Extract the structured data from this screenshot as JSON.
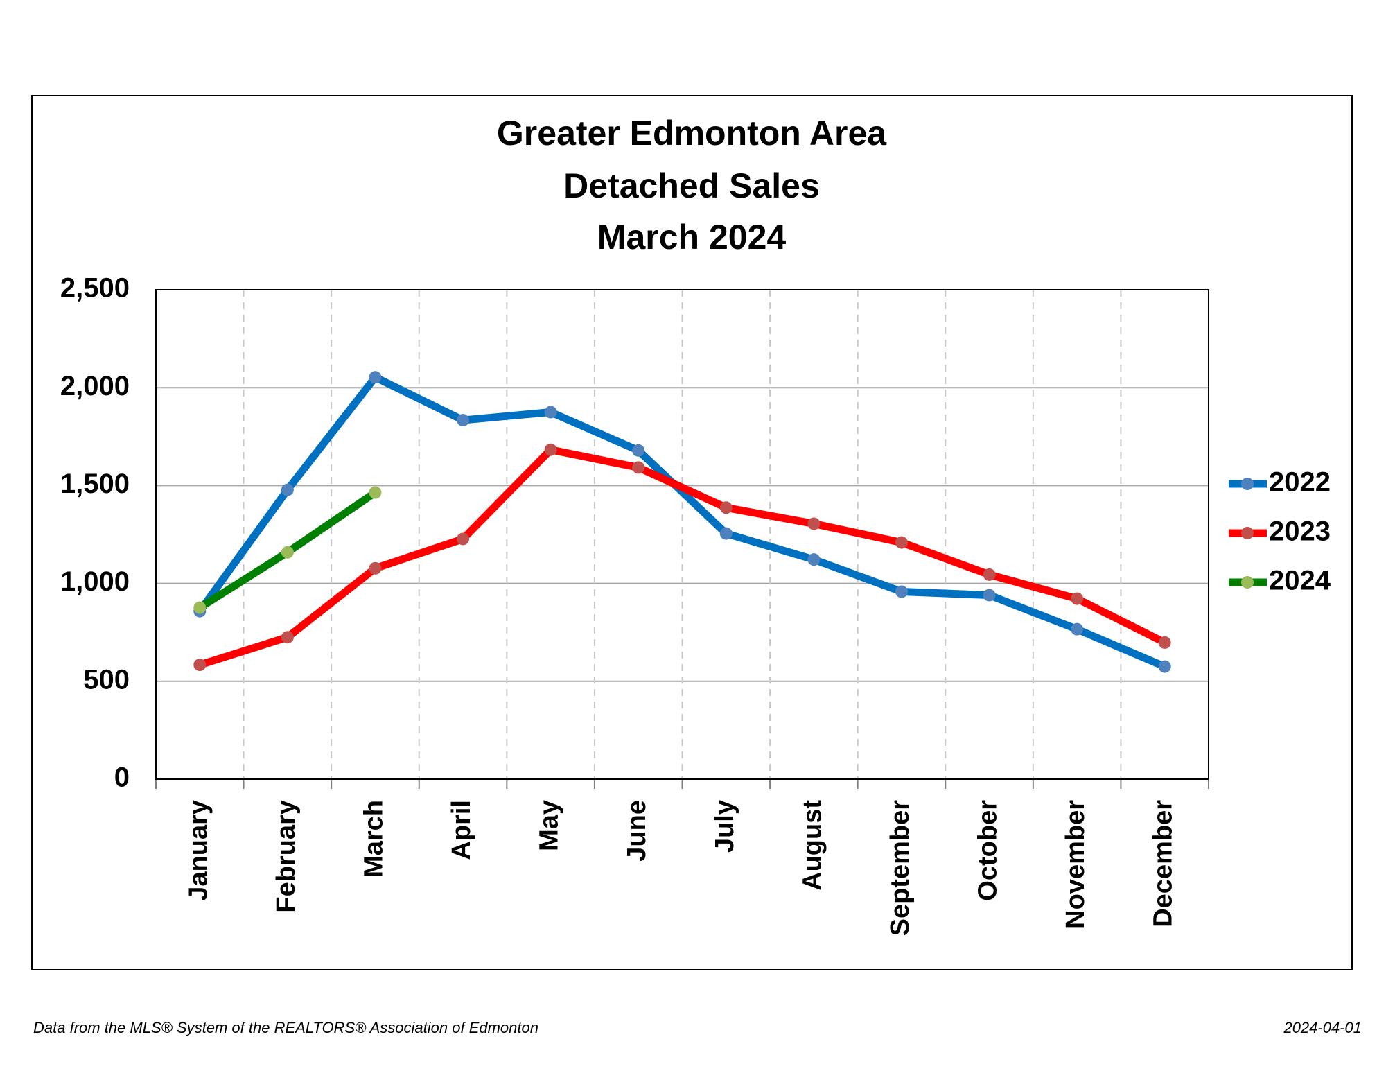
{
  "chart_data": {
    "type": "line",
    "title": [
      "Greater Edmonton Area",
      "Detached Sales",
      "March 2024"
    ],
    "categories": [
      "January",
      "February",
      "March",
      "April",
      "May",
      "June",
      "July",
      "August",
      "September",
      "October",
      "November",
      "December"
    ],
    "series": [
      {
        "name": "2022",
        "color": "#0070c0",
        "marker_color": "#4f81bd",
        "values": [
          858,
          1478,
          2053,
          1834,
          1875,
          1679,
          1255,
          1122,
          958,
          940,
          766,
          575
        ]
      },
      {
        "name": "2023",
        "color": "#ff0000",
        "marker_color": "#c0504d",
        "values": [
          584,
          725,
          1077,
          1227,
          1683,
          1592,
          1387,
          1305,
          1209,
          1045,
          922,
          698
        ]
      },
      {
        "name": "2024",
        "color": "#008000",
        "marker_color": "#9bbb59",
        "values": [
          876,
          1159,
          1464,
          null,
          null,
          null,
          null,
          null,
          null,
          null,
          null,
          null
        ]
      }
    ],
    "ylim": [
      0,
      2500
    ],
    "yticks": [
      0,
      500,
      {
        "value": 1000,
        "label": "1,000"
      },
      {
        "value": 1500,
        "label": "1,500"
      },
      {
        "value": 2000,
        "label": "2,000"
      },
      {
        "value": 2500,
        "label": "2,500"
      }
    ],
    "grid": true,
    "legend": "right",
    "footnote": "Data from the MLS® System of the REALTORS® Association of Edmonton",
    "date": "2024-04-01"
  }
}
